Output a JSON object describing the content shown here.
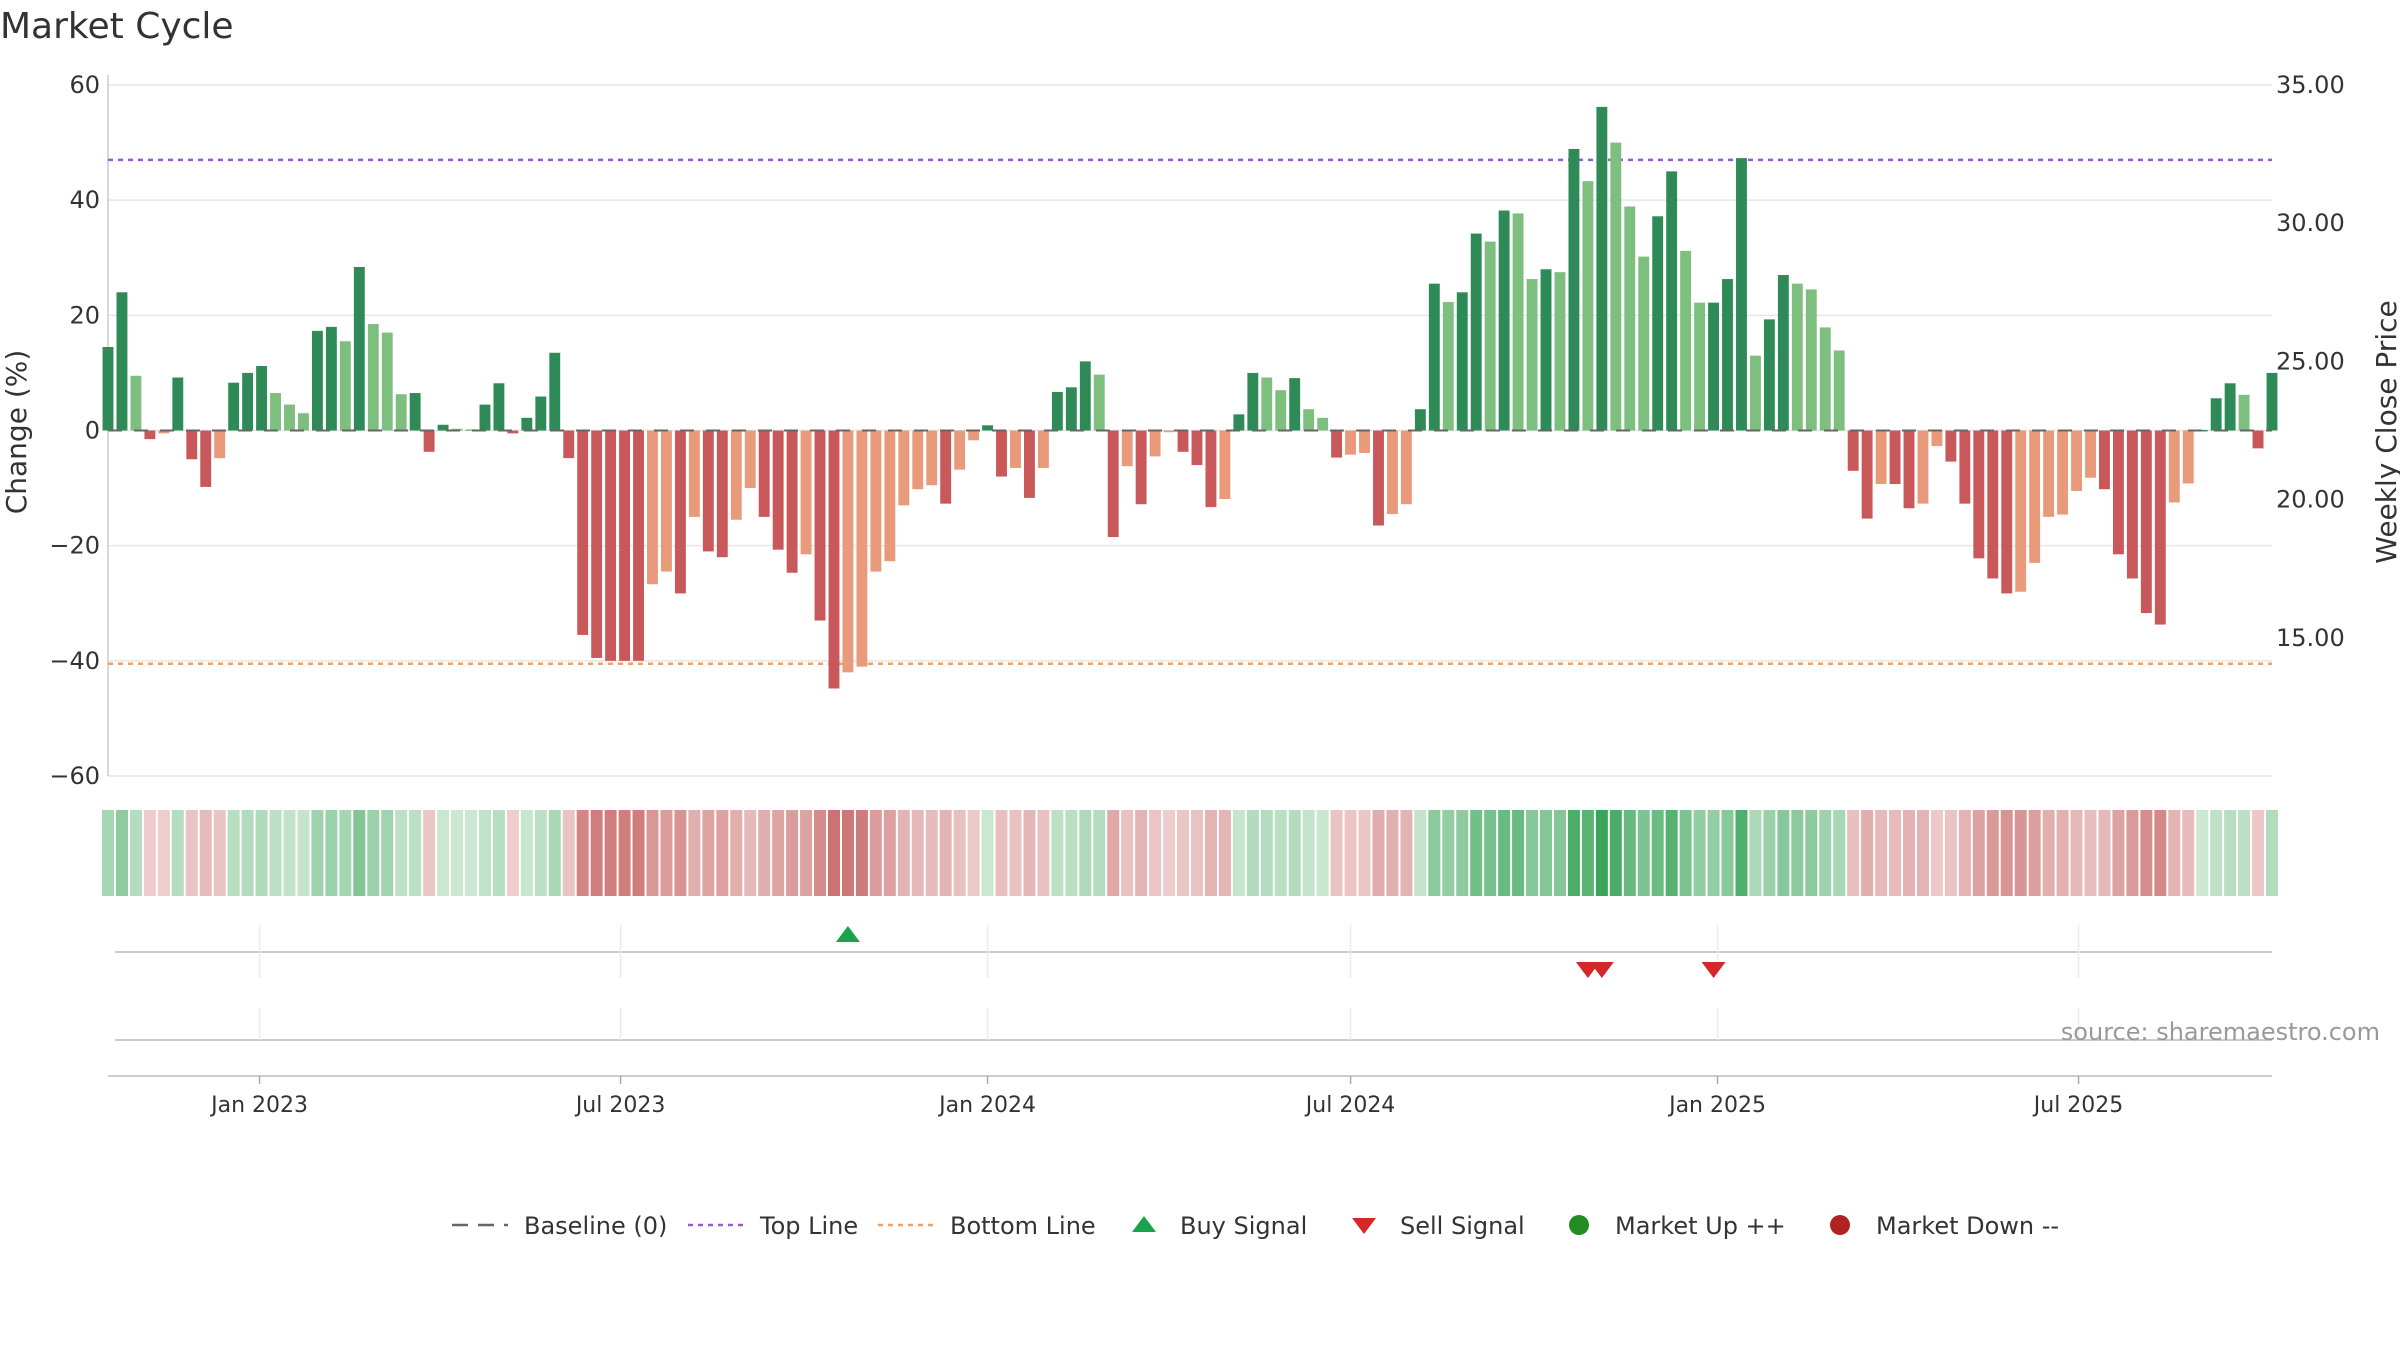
{
  "chart_data": {
    "type": "bar",
    "title": "Market Cycle",
    "ylabel": "Change (%)",
    "y2label": "Weekly Close Price",
    "ylim": [
      -60,
      60
    ],
    "yticks": [
      60,
      40,
      20,
      0,
      -20,
      -40,
      -60
    ],
    "ytick_labels": [
      "60",
      "40",
      "20",
      "0",
      "−20",
      "−40",
      "−60"
    ],
    "y2lim": [
      10,
      35
    ],
    "y2ticks": [
      35,
      30,
      25,
      20,
      15
    ],
    "y2tick_labels": [
      "35.00",
      "30.00",
      "25.00",
      "20.00",
      "15.00"
    ],
    "x_start": "2022-10-17",
    "x_end": "2025-10-06",
    "xticks": [
      {
        "date": "2023-01-01",
        "label": "Jan 2023"
      },
      {
        "date": "2023-07-01",
        "label": "Jul 2023"
      },
      {
        "date": "2024-01-01",
        "label": "Jan 2024"
      },
      {
        "date": "2024-07-01",
        "label": "Jul 2024"
      },
      {
        "date": "2025-01-01",
        "label": "Jan 2025"
      },
      {
        "date": "2025-07-01",
        "label": "Jul 2025"
      }
    ],
    "bar_start": "2022-10-17",
    "values": [
      14.5,
      24,
      9.5,
      -1.5,
      -0.5,
      9.2,
      -5,
      -9.8,
      -4.8,
      8.3,
      10,
      11.2,
      6.5,
      4.5,
      3,
      17.3,
      18,
      15.5,
      28.4,
      18.5,
      17,
      6.3,
      6.5,
      -3.7,
      1,
      0.3,
      0.2,
      4.5,
      8.2,
      -0.5,
      2.2,
      5.9,
      13.5,
      -4.8,
      -35.5,
      -39.5,
      -40,
      -40,
      -40,
      -26.7,
      -24.5,
      -28.3,
      -15,
      -21,
      -22,
      -15.5,
      -10,
      -15,
      -20.7,
      -24.7,
      -21.5,
      -33,
      -44.8,
      -42,
      -41,
      -24.5,
      -22.7,
      -13,
      -10.2,
      -9.5,
      -12.7,
      -6.8,
      -1.7,
      0.9,
      -8,
      -6.5,
      -11.7,
      -6.5,
      6.7,
      7.5,
      12,
      9.7,
      -18.5,
      -6.2,
      -12.8,
      -4.5,
      -0.3,
      -3.7,
      -6,
      -13.3,
      -11.9,
      2.8,
      10,
      9.2,
      7,
      9.1,
      3.7,
      2.2,
      -4.7,
      -4.2,
      -3.9,
      -16.5,
      -14.5,
      -12.8,
      3.7,
      25.5,
      22.3,
      24,
      34.2,
      32.8,
      38.2,
      37.7,
      26.3,
      28,
      27.5,
      48.9,
      43.3,
      56.2,
      50,
      38.9,
      30.2,
      37.2,
      45,
      31.2,
      22.2,
      22.2,
      26.3,
      47.3,
      13,
      19.3,
      27,
      25.5,
      24.5,
      17.9,
      13.9,
      -7,
      -15.3,
      -9.3,
      -9.3,
      -13.5,
      -12.7,
      -2.7,
      -5.4,
      -12.7,
      -22.2,
      -25.7,
      -28.3,
      -28,
      -23,
      -15,
      -14.6,
      -10.5,
      -8.2,
      -10.2,
      -21.5,
      -25.7,
      -31.7,
      -33.7,
      -12.5,
      -9.2,
      0.1,
      5.6,
      8.2,
      6.2,
      -3.1,
      10
    ],
    "top_line": 47,
    "bottom_line": -40.5,
    "buy_signals": [
      "2023-10-23"
    ],
    "sell_signals": [
      "2024-10-28",
      "2024-11-04",
      "2024-12-30"
    ],
    "colors": {
      "up_strong": "#2e8b57",
      "up_weak": "#7dbf7f",
      "down_strong": "#c8585a",
      "down_weak": "#e89a7a",
      "top_line": "#9b59d0",
      "bottom_line": "#f0a060",
      "buy": "#1aa34a",
      "sell": "#d62728",
      "market_up": "#228b22",
      "market_down": "#b22222",
      "baseline": "#666666"
    },
    "legend": [
      {
        "key": "baseline",
        "label": "Baseline (0)"
      },
      {
        "key": "top",
        "label": "Top Line"
      },
      {
        "key": "bottom",
        "label": "Bottom Line"
      },
      {
        "key": "buy",
        "label": "Buy Signal"
      },
      {
        "key": "sell",
        "label": "Sell Signal"
      },
      {
        "key": "up",
        "label": "Market Up ++"
      },
      {
        "key": "down",
        "label": "Market Down --"
      }
    ],
    "legend_position": "bottom-center",
    "grid": true
  },
  "source": "source: sharemaestro.com"
}
